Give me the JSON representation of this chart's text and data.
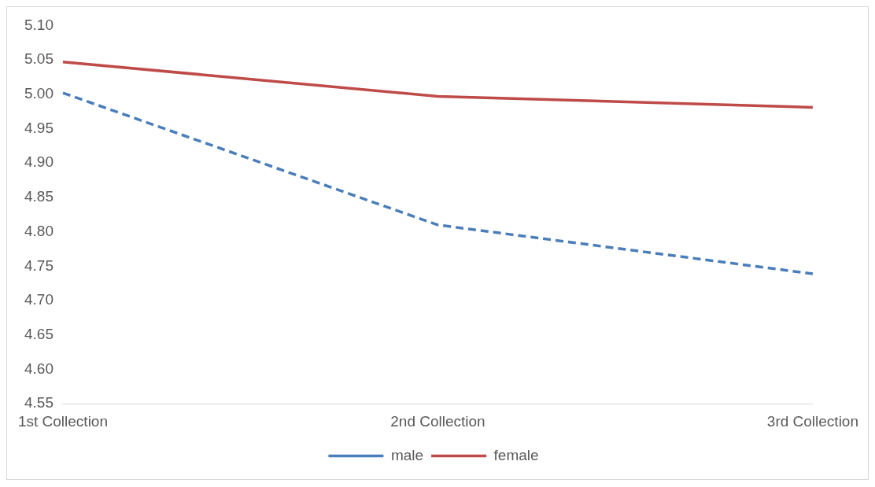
{
  "chart_data": {
    "type": "line",
    "categories": [
      "1st Collection",
      "2nd Collection",
      "3rd Collection"
    ],
    "series": [
      {
        "name": "male",
        "color": "#4a7ebb",
        "values": [
          5.002,
          4.81,
          4.739
        ],
        "line_style": "dashed"
      },
      {
        "name": "female",
        "color": "#be4b48",
        "values": [
          5.047,
          4.997,
          4.981
        ],
        "line_style": "solid"
      }
    ],
    "ylim": [
      4.55,
      5.1
    ],
    "yticks": [
      4.55,
      {
        "value": 4.6,
        "label": "4.60"
      },
      4.65,
      {
        "value": 4.7,
        "label": "4.70"
      },
      4.75,
      {
        "value": 4.8,
        "label": "4.80"
      },
      4.85,
      {
        "value": 4.9,
        "label": "4.90"
      },
      4.95,
      {
        "value": 5,
        "label": "5.00"
      },
      5.05,
      {
        "value": 5.1,
        "label": "5.10"
      }
    ],
    "grid": false,
    "legend": "bottom",
    "marker": "none"
  }
}
